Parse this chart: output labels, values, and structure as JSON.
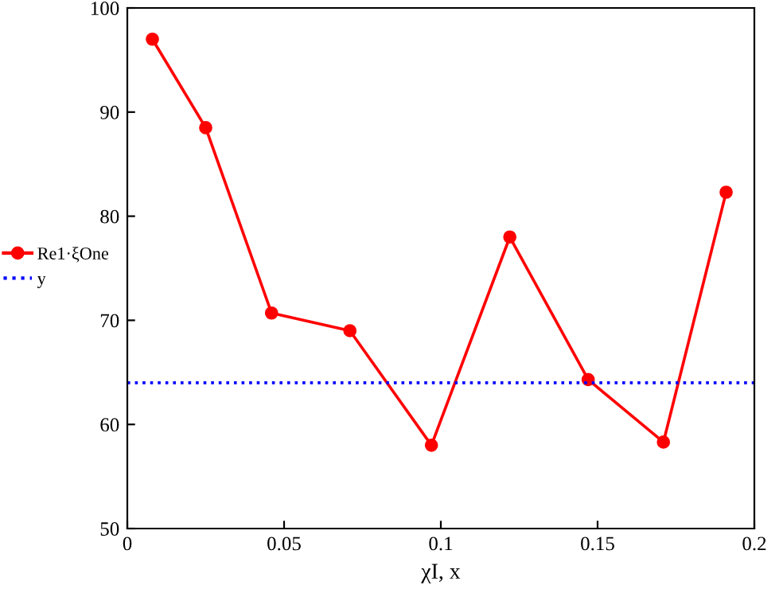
{
  "chart_data": {
    "type": "line",
    "xlabel": "χI, x",
    "xlim": [
      0,
      0.2
    ],
    "ylim": [
      50,
      100
    ],
    "xticks": [
      0,
      0.05,
      0.1,
      0.15,
      0.2
    ],
    "yticks": [
      50,
      60,
      70,
      80,
      90,
      100
    ],
    "grid": false,
    "legend": "left",
    "series": [
      {
        "name": "Re1·ξOne",
        "color": "#ff0000",
        "marker": "circle",
        "line_style": "solid",
        "x": [
          0.008,
          0.025,
          0.046,
          0.071,
          0.097,
          0.122,
          0.147,
          0.171,
          0.191
        ],
        "values": [
          97,
          88.5,
          70.7,
          69,
          58,
          78,
          64.3,
          58.3,
          82.3
        ]
      },
      {
        "name": "y",
        "color": "#0000ff",
        "marker": "none",
        "line_style": "dotted",
        "x": [
          0,
          0.2
        ],
        "values": [
          64,
          64
        ]
      }
    ]
  }
}
